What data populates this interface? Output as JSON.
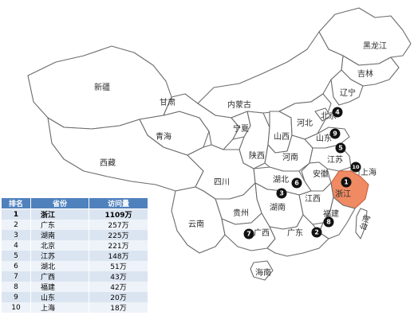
{
  "provinces": {
    "heilongjiang": "黑龙江",
    "jilin": "吉林",
    "liaoning": "辽宁",
    "neimenggu": "内蒙古",
    "xinjiang": "新疆",
    "gansu": "甘肃",
    "qinghai": "青海",
    "xizang": "西藏",
    "ningxia": "宁夏",
    "shanxi": "山西",
    "shaanxi": "陕西",
    "hebei": "河北",
    "beijing": "北京",
    "shandong": "山东",
    "henan": "河南",
    "jiangsu": "江苏",
    "anhui": "安徽",
    "shanghai": "上海",
    "hubei": "湖北",
    "sichuan": "四川",
    "zhejiang": "浙江",
    "jiangxi": "江西",
    "hunan": "湖南",
    "guizhou": "贵州",
    "fujian": "福建",
    "yunnan": "云南",
    "guangxi": "广西",
    "guangdong": "广东",
    "taiwan": "台湾",
    "hainan": "海南"
  },
  "markers": [
    {
      "num": "1",
      "province": "zhejiang"
    },
    {
      "num": "2",
      "province": "guangdong"
    },
    {
      "num": "3",
      "province": "hunan"
    },
    {
      "num": "4",
      "province": "beijing"
    },
    {
      "num": "5",
      "province": "jiangsu"
    },
    {
      "num": "6",
      "province": "hubei"
    },
    {
      "num": "7",
      "province": "guangxi"
    },
    {
      "num": "8",
      "province": "fujian"
    },
    {
      "num": "9",
      "province": "shandong"
    },
    {
      "num": "10",
      "province": "shanghai"
    }
  ],
  "highlight_color": "#ef8a63",
  "table": {
    "headers": [
      "排名",
      "省份",
      "访问量"
    ],
    "rows": [
      {
        "rank": "1",
        "province": "浙江",
        "visits": "1109万"
      },
      {
        "rank": "2",
        "province": "广东",
        "visits": "257万"
      },
      {
        "rank": "3",
        "province": "湖南",
        "visits": "225万"
      },
      {
        "rank": "4",
        "province": "北京",
        "visits": "221万"
      },
      {
        "rank": "5",
        "province": "江苏",
        "visits": "148万"
      },
      {
        "rank": "6",
        "province": "湖北",
        "visits": "51万"
      },
      {
        "rank": "7",
        "province": "广西",
        "visits": "43万"
      },
      {
        "rank": "8",
        "province": "福建",
        "visits": "42万"
      },
      {
        "rank": "9",
        "province": "山东",
        "visits": "20万"
      },
      {
        "rank": "10",
        "province": "上海",
        "visits": "18万"
      }
    ],
    "header_color": "#4f81bd"
  }
}
